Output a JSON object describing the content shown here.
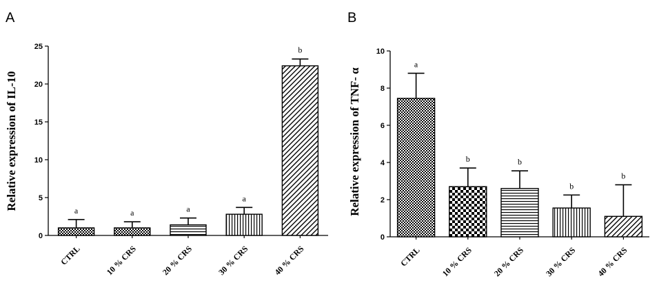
{
  "chart_data": [
    {
      "type": "bar",
      "panel_label": "A",
      "ylabel": "Relative expression of  IL-10",
      "xlabel": "",
      "title": "",
      "categories": [
        "CTRL",
        "10 % CRS",
        "20 % CRS",
        "30 % CRS",
        "40 % CRS"
      ],
      "values": [
        1.0,
        1.0,
        1.4,
        2.8,
        22.4
      ],
      "errors": [
        1.1,
        0.8,
        0.9,
        0.9,
        0.9
      ],
      "significance": [
        "a",
        "a",
        "a",
        "a",
        "b"
      ],
      "ylim": [
        0,
        25
      ],
      "yticks": [
        0,
        5,
        10,
        15,
        20,
        25
      ],
      "patterns": [
        "checker-small",
        "checker-small",
        "horizontal",
        "vertical",
        "diagonal"
      ],
      "grid": false,
      "legend": "none"
    },
    {
      "type": "bar",
      "panel_label": "B",
      "ylabel": "Relative expression of TNF- α",
      "xlabel": "",
      "title": "",
      "categories": [
        "CTRL",
        "10 % CRS",
        "20 % CRS",
        "30 % CRS",
        "40 % CRS"
      ],
      "values": [
        7.45,
        2.7,
        2.6,
        1.55,
        1.1
      ],
      "errors": [
        1.35,
        1.0,
        0.95,
        0.7,
        1.7
      ],
      "significance": [
        "a",
        "b",
        "b",
        "b",
        "b"
      ],
      "ylim": [
        0,
        10
      ],
      "yticks": [
        0,
        2,
        4,
        6,
        8,
        10
      ],
      "patterns": [
        "checker-small",
        "checker-large",
        "horizontal",
        "vertical",
        "diagonal"
      ],
      "grid": false,
      "legend": "none"
    }
  ]
}
